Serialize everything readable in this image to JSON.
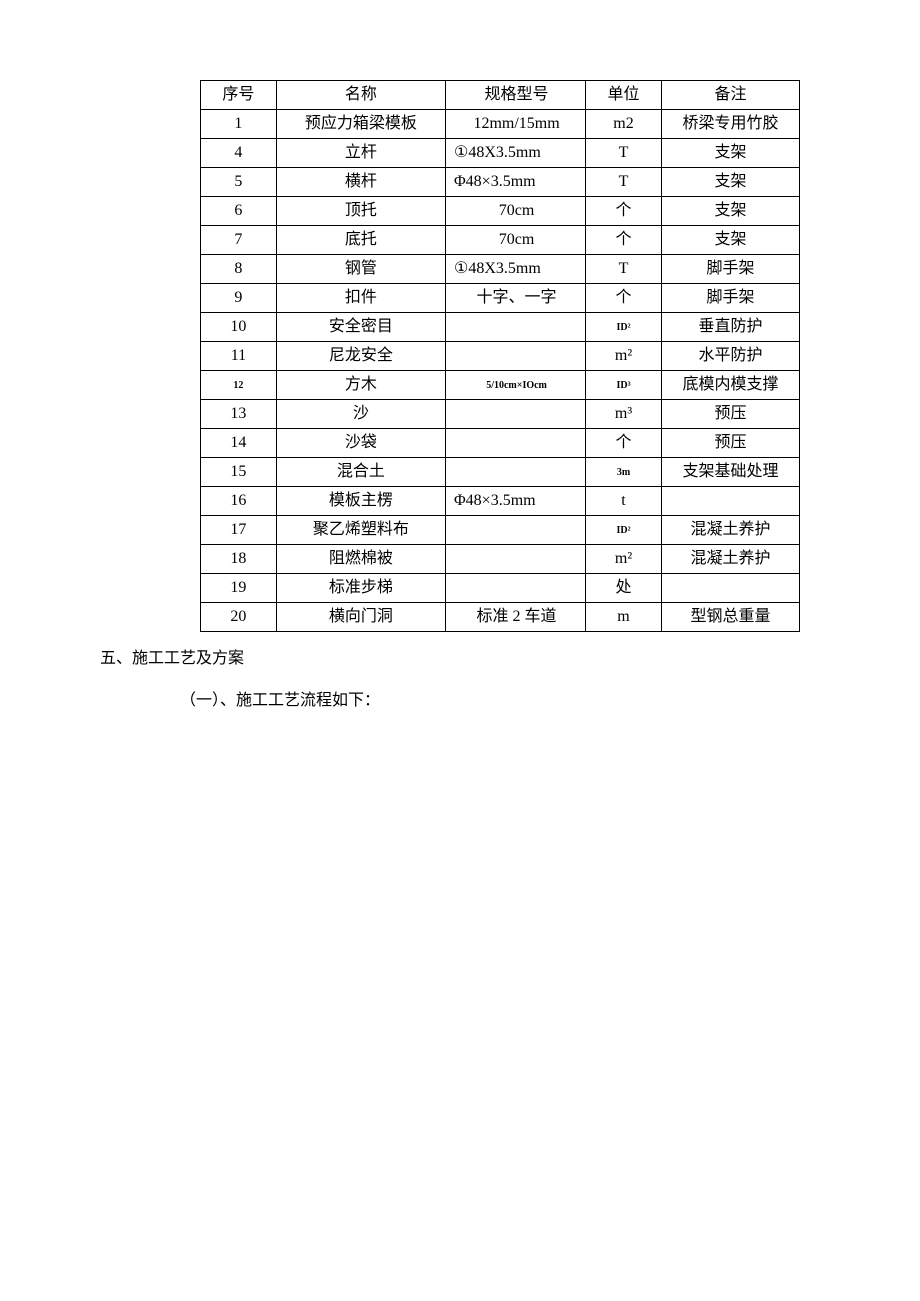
{
  "table": {
    "headers": [
      "序号",
      "名称",
      "规格型号",
      "单位",
      "备注"
    ],
    "col_classes": [
      "col-seq",
      "col-name",
      "col-spec",
      "col-unit",
      "col-remark"
    ],
    "rows": [
      {
        "seq": "1",
        "name": "预应力箱梁模板",
        "spec": "12mm/15mm",
        "spec_center": true,
        "unit": "m2",
        "remark": "桥梁专用竹胶"
      },
      {
        "seq": "4",
        "name": "立杆",
        "spec": "①48X3.5mm",
        "unit": "T",
        "remark": "支架"
      },
      {
        "seq": "5",
        "name": "横杆",
        "spec": "Φ48×3.5mm",
        "unit": "T",
        "remark": "支架"
      },
      {
        "seq": "6",
        "name": "顶托",
        "spec": "70cm",
        "spec_center": true,
        "unit": "个",
        "remark": "支架"
      },
      {
        "seq": "7",
        "name": "底托",
        "spec": "70cm",
        "spec_center": true,
        "unit": "个",
        "remark": "支架"
      },
      {
        "seq": "8",
        "name": "钢管",
        "spec": "①48X3.5mm",
        "unit": "T",
        "remark": "脚手架"
      },
      {
        "seq": "9",
        "name": "扣件",
        "spec": "十字、一字",
        "spec_center": true,
        "unit": "个",
        "remark": "脚手架"
      },
      {
        "seq": "10",
        "name": "安全密目",
        "spec": "",
        "unit": "ID²",
        "unit_small": true,
        "remark": "垂直防护"
      },
      {
        "seq": "11",
        "name": "尼龙安全",
        "spec": "",
        "unit": "m²",
        "remark": "水平防护"
      },
      {
        "seq": "12",
        "seq_small": true,
        "name": "方木",
        "spec": "5/10cm×IOcm",
        "spec_small": true,
        "spec_center": true,
        "unit": "ID³",
        "unit_small": true,
        "remark": "底模内模支撑"
      },
      {
        "seq": "13",
        "name": "沙",
        "spec": "",
        "unit": "m³",
        "remark": "预压"
      },
      {
        "seq": "14",
        "name": "沙袋",
        "spec": "",
        "unit": "个",
        "remark": "预压"
      },
      {
        "seq": "15",
        "name": "混合土",
        "spec": "",
        "unit": "3m",
        "unit_small": true,
        "remark": "支架基础处理"
      },
      {
        "seq": "16",
        "name": "模板主楞",
        "spec": "Φ48×3.5mm",
        "unit": "t",
        "remark": ""
      },
      {
        "seq": "17",
        "name": "聚乙烯塑料布",
        "spec": "",
        "unit": "ID²",
        "unit_small": true,
        "remark": "混凝土养护"
      },
      {
        "seq": "18",
        "name": "阻燃棉被",
        "spec": "",
        "unit": "m²",
        "remark": "混凝土养护"
      },
      {
        "seq": "19",
        "name": "标准步梯",
        "spec": "",
        "unit": "处",
        "remark": ""
      },
      {
        "seq": "20",
        "name": "横向门洞",
        "spec": "标准 2 车道",
        "spec_center": true,
        "unit": "m",
        "remark": "型钢总重量"
      }
    ]
  },
  "section_title": "五、施工工艺及方案",
  "subsection_title": "（一）、施工工艺流程如下："
}
